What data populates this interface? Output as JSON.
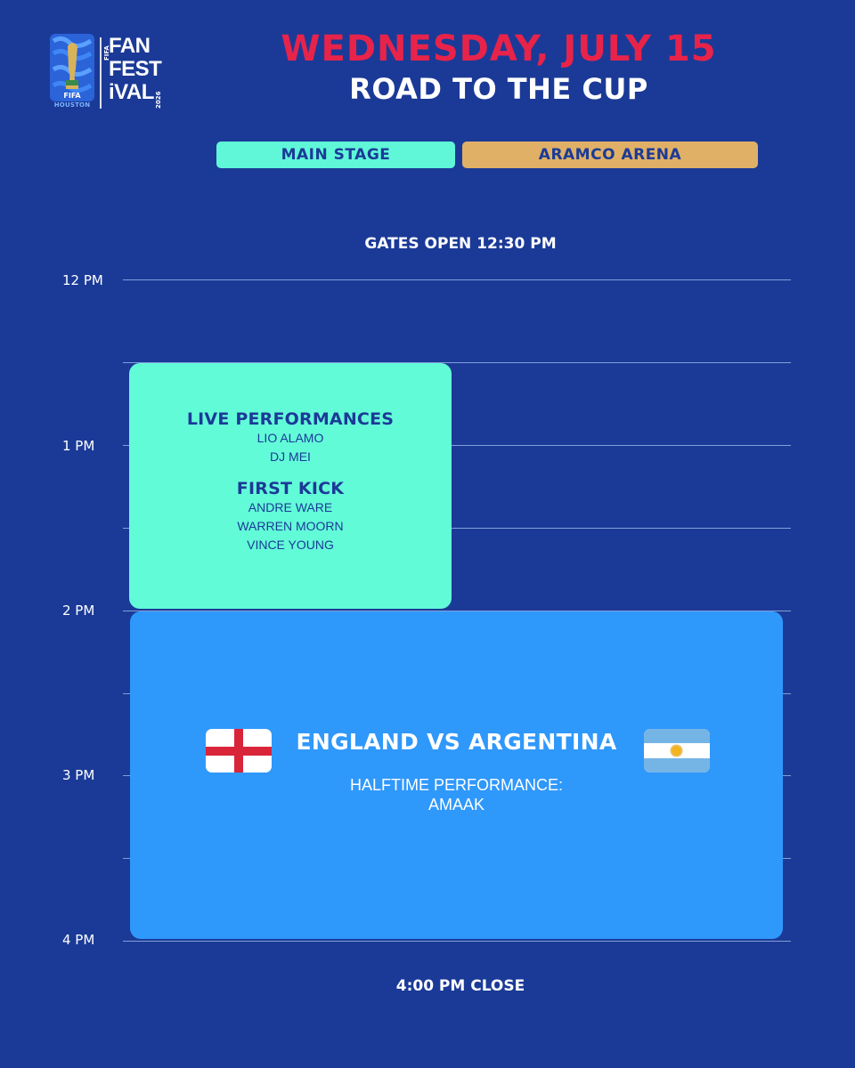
{
  "logo": {
    "org": "FIFA",
    "word_lines": [
      "FAN",
      "FEST",
      "iVAL"
    ],
    "year": "2026",
    "city": "HOUSTON"
  },
  "header": {
    "date": "WEDNESDAY, JULY 15",
    "subtitle": "ROAD TO THE CUP"
  },
  "stages": [
    {
      "label": "MAIN STAGE",
      "color": "#5ff7d8"
    },
    {
      "label": "ARAMCO ARENA",
      "color": "#dfb066"
    }
  ],
  "gates_open": "GATES OPEN 12:30 PM",
  "time_labels": [
    "12 PM",
    "1 PM",
    "2 PM",
    "3 PM",
    "4 PM"
  ],
  "events": {
    "main_stage": {
      "color": "#62fbd8",
      "sections": [
        {
          "heading": "LIVE PERFORMANCES",
          "names": [
            "LIO ALAMO",
            "DJ MEI"
          ]
        },
        {
          "heading": "FIRST KICK",
          "names": [
            "ANDRE WARE",
            "WARREN MOORN",
            "VINCE YOUNG"
          ]
        }
      ]
    },
    "match": {
      "color": "#2f98fb",
      "title": "ENGLAND VS ARGENTINA",
      "halftime_label": "HALFTIME PERFORMANCE:",
      "halftime_artist": "AMAAK",
      "flags": [
        "england-flag-icon",
        "argentina-flag-icon"
      ]
    }
  },
  "close": "4:00 PM CLOSE",
  "colors": {
    "background": "#1b3a97",
    "title_red": "#e8234a"
  }
}
